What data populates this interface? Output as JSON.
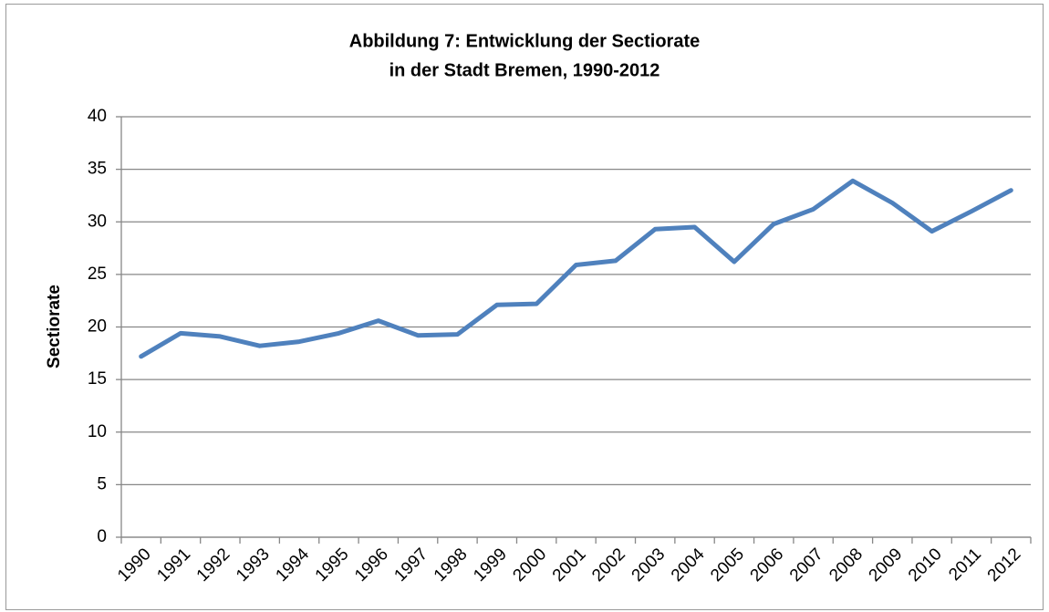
{
  "chart_data": {
    "type": "line",
    "title": [
      "Abbildung 7: Entwicklung der Sectiorate",
      "in der Stadt Bremen, 1990-2012"
    ],
    "y_label": "Sectiorate",
    "categories": [
      "1990",
      "1991",
      "1992",
      "1993",
      "1994",
      "1995",
      "1996",
      "1997",
      "1998",
      "1999",
      "2000",
      "2001",
      "2002",
      "2003",
      "2004",
      "2005",
      "2006",
      "2007",
      "2008",
      "2009",
      "2010",
      "2011",
      "2012"
    ],
    "series": [
      {
        "name": "Sectiorate",
        "color": "#4f81bd",
        "values": [
          17.2,
          19.4,
          19.1,
          18.2,
          18.6,
          19.4,
          20.6,
          19.2,
          19.3,
          22.1,
          22.2,
          25.9,
          26.3,
          29.3,
          29.5,
          26.2,
          29.8,
          31.2,
          33.9,
          31.8,
          29.1,
          31.0,
          33.0
        ]
      }
    ],
    "ylim": [
      0,
      40
    ],
    "yticks": [
      0,
      5,
      10,
      15,
      20,
      25,
      30,
      35,
      40
    ],
    "grid": true,
    "legend": false
  }
}
